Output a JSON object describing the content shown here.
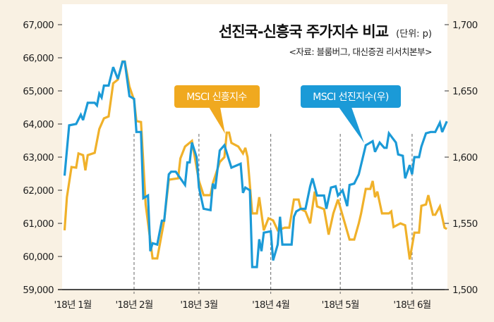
{
  "chart_data": {
    "type": "line",
    "title": "선진국-신흥국 주가지수 비교",
    "unit": "(단위: p)",
    "source": "<자료: 블룸버그, 대신증권 리서치본부>",
    "x_ticks": [
      {
        "date": "2018-01-01",
        "label": "'18년 1월"
      },
      {
        "date": "2018-02-01",
        "label": "'18년 2월"
      },
      {
        "date": "2018-03-01",
        "label": "'18년 3월"
      },
      {
        "date": "2018-04-01",
        "label": "'18년 4월"
      },
      {
        "date": "2018-05-01",
        "label": "'18년 5월"
      },
      {
        "date": "2018-06-01",
        "label": "'18년 6월"
      }
    ],
    "y_left": {
      "range": [
        59000,
        67000
      ],
      "ticks": [
        59000,
        60000,
        61000,
        62000,
        63000,
        64000,
        65000,
        66000,
        67000
      ],
      "tick_labels": [
        "59,000",
        "60,000",
        "61,000",
        "62,000",
        "63,000",
        "64,000",
        "65,000",
        "66,000",
        "67,000"
      ]
    },
    "y_right": {
      "range": [
        1500,
        1700
      ],
      "ticks": [
        1500,
        1550,
        1600,
        1650,
        1700
      ],
      "tick_labels": [
        "1,500",
        "1,550",
        "1,600",
        "1,650",
        "1,700"
      ]
    },
    "grid": false,
    "series": [
      {
        "name": "MSCI 신흥지수",
        "axis": "left",
        "color": "#f0b12a",
        "points": [
          [
            "2018-01-02",
            60790
          ],
          [
            "2018-01-03",
            61790
          ],
          [
            "2018-01-05",
            62700
          ],
          [
            "2018-01-07",
            62680
          ],
          [
            "2018-01-08",
            63110
          ],
          [
            "2018-01-10",
            63060
          ],
          [
            "2018-01-11",
            62600
          ],
          [
            "2018-01-12",
            63060
          ],
          [
            "2018-01-15",
            63130
          ],
          [
            "2018-01-17",
            63850
          ],
          [
            "2018-01-19",
            64170
          ],
          [
            "2018-01-21",
            64230
          ],
          [
            "2018-01-23",
            65230
          ],
          [
            "2018-01-25",
            65340
          ],
          [
            "2018-01-27",
            65890
          ],
          [
            "2018-01-28",
            65890
          ],
          [
            "2018-01-30",
            65130
          ],
          [
            "2018-02-01",
            64720
          ],
          [
            "2018-02-02",
            64090
          ],
          [
            "2018-02-04",
            64060
          ],
          [
            "2018-02-06",
            61570
          ],
          [
            "2018-02-09",
            59940
          ],
          [
            "2018-02-11",
            59940
          ],
          [
            "2018-02-14",
            61090
          ],
          [
            "2018-02-16",
            62320
          ],
          [
            "2018-02-20",
            62360
          ],
          [
            "2018-02-21",
            62960
          ],
          [
            "2018-02-23",
            63320
          ],
          [
            "2018-02-26",
            63490
          ],
          [
            "2018-03-01",
            62280
          ],
          [
            "2018-03-03",
            61850
          ],
          [
            "2018-03-06",
            61850
          ],
          [
            "2018-03-07",
            62210
          ],
          [
            "2018-03-10",
            62850
          ],
          [
            "2018-03-12",
            63000
          ],
          [
            "2018-03-13",
            63740
          ],
          [
            "2018-03-14",
            63740
          ],
          [
            "2018-03-15",
            63430
          ],
          [
            "2018-03-18",
            63320
          ],
          [
            "2018-03-20",
            63110
          ],
          [
            "2018-03-21",
            63280
          ],
          [
            "2018-03-22",
            63000
          ],
          [
            "2018-03-24",
            61300
          ],
          [
            "2018-03-26",
            61300
          ],
          [
            "2018-03-27",
            61790
          ],
          [
            "2018-03-29",
            60790
          ],
          [
            "2018-03-31",
            61150
          ],
          [
            "2018-04-02",
            61090
          ],
          [
            "2018-04-04",
            60790
          ],
          [
            "2018-04-07",
            60870
          ],
          [
            "2018-04-09",
            60870
          ],
          [
            "2018-04-11",
            61720
          ],
          [
            "2018-04-13",
            61720
          ],
          [
            "2018-04-14",
            61430
          ],
          [
            "2018-04-16",
            61360
          ],
          [
            "2018-04-18",
            61000
          ],
          [
            "2018-04-20",
            61960
          ],
          [
            "2018-04-21",
            61510
          ],
          [
            "2018-04-24",
            61430
          ],
          [
            "2018-04-26",
            60660
          ],
          [
            "2018-04-28",
            61300
          ],
          [
            "2018-04-30",
            61720
          ],
          [
            "2018-05-03",
            61000
          ],
          [
            "2018-05-05",
            60510
          ],
          [
            "2018-05-07",
            60510
          ],
          [
            "2018-05-09",
            61000
          ],
          [
            "2018-05-10",
            61300
          ],
          [
            "2018-05-12",
            62040
          ],
          [
            "2018-05-14",
            62040
          ],
          [
            "2018-05-15",
            62280
          ],
          [
            "2018-05-16",
            61790
          ],
          [
            "2018-05-17",
            61960
          ],
          [
            "2018-05-19",
            61300
          ],
          [
            "2018-05-22",
            61300
          ],
          [
            "2018-05-23",
            61360
          ],
          [
            "2018-05-24",
            60890
          ],
          [
            "2018-05-27",
            61000
          ],
          [
            "2018-05-29",
            60940
          ],
          [
            "2018-05-31",
            59910
          ],
          [
            "2018-06-02",
            60720
          ],
          [
            "2018-06-04",
            60720
          ],
          [
            "2018-06-05",
            61530
          ],
          [
            "2018-06-07",
            61570
          ],
          [
            "2018-06-08",
            61850
          ],
          [
            "2018-06-10",
            61260
          ],
          [
            "2018-06-11",
            61260
          ],
          [
            "2018-06-13",
            61510
          ],
          [
            "2018-06-15",
            60870
          ],
          [
            "2018-06-16",
            60830
          ]
        ]
      },
      {
        "name": "MSCI 선진지수(우)",
        "axis": "right",
        "color": "#1b9ad7",
        "points": [
          [
            "2018-01-02",
            1586
          ],
          [
            "2018-01-04",
            1624
          ],
          [
            "2018-01-07",
            1625
          ],
          [
            "2018-01-09",
            1632
          ],
          [
            "2018-01-10",
            1628
          ],
          [
            "2018-01-12",
            1641
          ],
          [
            "2018-01-15",
            1641
          ],
          [
            "2018-01-16",
            1639
          ],
          [
            "2018-01-17",
            1648
          ],
          [
            "2018-01-18",
            1645
          ],
          [
            "2018-01-19",
            1654
          ],
          [
            "2018-01-21",
            1654
          ],
          [
            "2018-01-23",
            1668
          ],
          [
            "2018-01-25",
            1659
          ],
          [
            "2018-01-27",
            1672
          ],
          [
            "2018-01-28",
            1672
          ],
          [
            "2018-01-30",
            1646
          ],
          [
            "2018-02-01",
            1644
          ],
          [
            "2018-02-02",
            1619
          ],
          [
            "2018-02-04",
            1619
          ],
          [
            "2018-02-05",
            1569
          ],
          [
            "2018-02-07",
            1571
          ],
          [
            "2018-02-08",
            1529
          ],
          [
            "2018-02-09",
            1535
          ],
          [
            "2018-02-11",
            1534
          ],
          [
            "2018-02-13",
            1552
          ],
          [
            "2018-02-14",
            1552
          ],
          [
            "2018-02-16",
            1587
          ],
          [
            "2018-02-17",
            1589
          ],
          [
            "2018-02-19",
            1589
          ],
          [
            "2018-02-21",
            1584
          ],
          [
            "2018-02-23",
            1579
          ],
          [
            "2018-02-24",
            1596
          ],
          [
            "2018-02-25",
            1596
          ],
          [
            "2018-02-26",
            1611
          ],
          [
            "2018-02-28",
            1600
          ],
          [
            "2018-03-01",
            1577
          ],
          [
            "2018-03-03",
            1561
          ],
          [
            "2018-03-06",
            1560
          ],
          [
            "2018-03-07",
            1580
          ],
          [
            "2018-03-08",
            1576
          ],
          [
            "2018-03-10",
            1605
          ],
          [
            "2018-03-12",
            1609
          ],
          [
            "2018-03-15",
            1592
          ],
          [
            "2018-03-19",
            1595
          ],
          [
            "2018-03-20",
            1573
          ],
          [
            "2018-03-21",
            1577
          ],
          [
            "2018-03-23",
            1575
          ],
          [
            "2018-03-24",
            1517
          ],
          [
            "2018-03-26",
            1517
          ],
          [
            "2018-03-27",
            1538
          ],
          [
            "2018-03-28",
            1529
          ],
          [
            "2018-03-29",
            1543
          ],
          [
            "2018-04-01",
            1544
          ],
          [
            "2018-04-02",
            1522
          ],
          [
            "2018-04-04",
            1534
          ],
          [
            "2018-04-05",
            1555
          ],
          [
            "2018-04-06",
            1534
          ],
          [
            "2018-04-10",
            1534
          ],
          [
            "2018-04-11",
            1555
          ],
          [
            "2018-04-12",
            1559
          ],
          [
            "2018-04-14",
            1561
          ],
          [
            "2018-04-16",
            1561
          ],
          [
            "2018-04-18",
            1578
          ],
          [
            "2018-04-19",
            1584
          ],
          [
            "2018-04-21",
            1571
          ],
          [
            "2018-04-24",
            1571
          ],
          [
            "2018-04-25",
            1561
          ],
          [
            "2018-04-27",
            1577
          ],
          [
            "2018-04-29",
            1578
          ],
          [
            "2018-04-30",
            1571
          ],
          [
            "2018-05-02",
            1575
          ],
          [
            "2018-05-04",
            1563
          ],
          [
            "2018-05-05",
            1579
          ],
          [
            "2018-05-07",
            1580
          ],
          [
            "2018-05-09",
            1587
          ],
          [
            "2018-05-12",
            1609
          ],
          [
            "2018-05-13",
            1610
          ],
          [
            "2018-05-15",
            1612
          ],
          [
            "2018-05-16",
            1604
          ],
          [
            "2018-05-18",
            1611
          ],
          [
            "2018-05-20",
            1607
          ],
          [
            "2018-05-21",
            1607
          ],
          [
            "2018-05-22",
            1618
          ],
          [
            "2018-05-25",
            1611
          ],
          [
            "2018-05-26",
            1602
          ],
          [
            "2018-05-28",
            1601
          ],
          [
            "2018-05-29",
            1584
          ],
          [
            "2018-05-31",
            1594
          ],
          [
            "2018-06-01",
            1587
          ],
          [
            "2018-06-02",
            1600
          ],
          [
            "2018-06-04",
            1600
          ],
          [
            "2018-06-05",
            1608
          ],
          [
            "2018-06-07",
            1618
          ],
          [
            "2018-06-09",
            1619
          ],
          [
            "2018-06-11",
            1619
          ],
          [
            "2018-06-13",
            1626
          ],
          [
            "2018-06-14",
            1619
          ],
          [
            "2018-06-16",
            1627
          ]
        ]
      }
    ],
    "legend": "callouts"
  },
  "callouts": {
    "em": "MSCI 신흥지수",
    "dm": "MSCI 선진지수(우)"
  }
}
